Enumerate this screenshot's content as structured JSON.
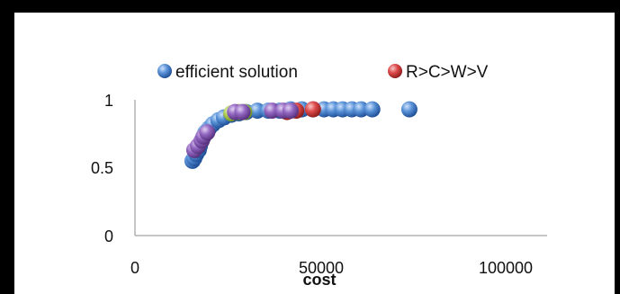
{
  "chart_data": {
    "type": "scatter",
    "title": "",
    "xlabel": "cost",
    "ylabel": "",
    "xlim": [
      0,
      100000
    ],
    "ylim": [
      0,
      1
    ],
    "x_ticks": [
      0,
      50000,
      100000
    ],
    "x_tick_labels": [
      "0",
      "50000",
      "100000"
    ],
    "y_ticks": [
      0,
      0.5,
      1
    ],
    "y_tick_labels": [
      "0",
      "0.5",
      "1"
    ],
    "grid": false,
    "legend_position": "top",
    "series": [
      {
        "name": "efficient solution",
        "color": "#3f7cc8",
        "points": [
          [
            15500,
            0.55
          ],
          [
            16000,
            0.57
          ],
          [
            16500,
            0.6
          ],
          [
            17200,
            0.63
          ],
          [
            17500,
            0.66
          ],
          [
            18000,
            0.7
          ],
          [
            18500,
            0.73
          ],
          [
            19000,
            0.76
          ],
          [
            20000,
            0.79
          ],
          [
            21000,
            0.82
          ],
          [
            22500,
            0.85
          ],
          [
            24000,
            0.87
          ],
          [
            26000,
            0.89
          ],
          [
            28000,
            0.9
          ],
          [
            30000,
            0.91
          ],
          [
            33000,
            0.92
          ],
          [
            36000,
            0.92
          ],
          [
            39000,
            0.92
          ],
          [
            42000,
            0.93
          ],
          [
            45000,
            0.93
          ],
          [
            48000,
            0.93
          ],
          [
            51000,
            0.93
          ],
          [
            53500,
            0.93
          ],
          [
            56000,
            0.93
          ],
          [
            58500,
            0.93
          ],
          [
            61000,
            0.93
          ],
          [
            64000,
            0.93
          ],
          [
            74000,
            0.93
          ]
        ]
      },
      {
        "name": "R>C>W>V",
        "color": "#d63a3a",
        "points": [
          [
            41000,
            0.91
          ],
          [
            43500,
            0.92
          ],
          [
            48000,
            0.93
          ]
        ]
      },
      {
        "name": "",
        "color": "#a6c64a",
        "points": [
          [
            26000,
            0.9
          ],
          [
            28000,
            0.91
          ],
          [
            29500,
            0.91
          ]
        ]
      },
      {
        "name": "",
        "color": "#8a5cb5",
        "points": [
          [
            16000,
            0.63
          ],
          [
            17000,
            0.66
          ],
          [
            18000,
            0.7
          ],
          [
            18500,
            0.73
          ],
          [
            19500,
            0.76
          ],
          [
            27000,
            0.91
          ],
          [
            29000,
            0.91
          ],
          [
            37000,
            0.92
          ],
          [
            40000,
            0.92
          ],
          [
            42000,
            0.92
          ]
        ]
      }
    ]
  }
}
